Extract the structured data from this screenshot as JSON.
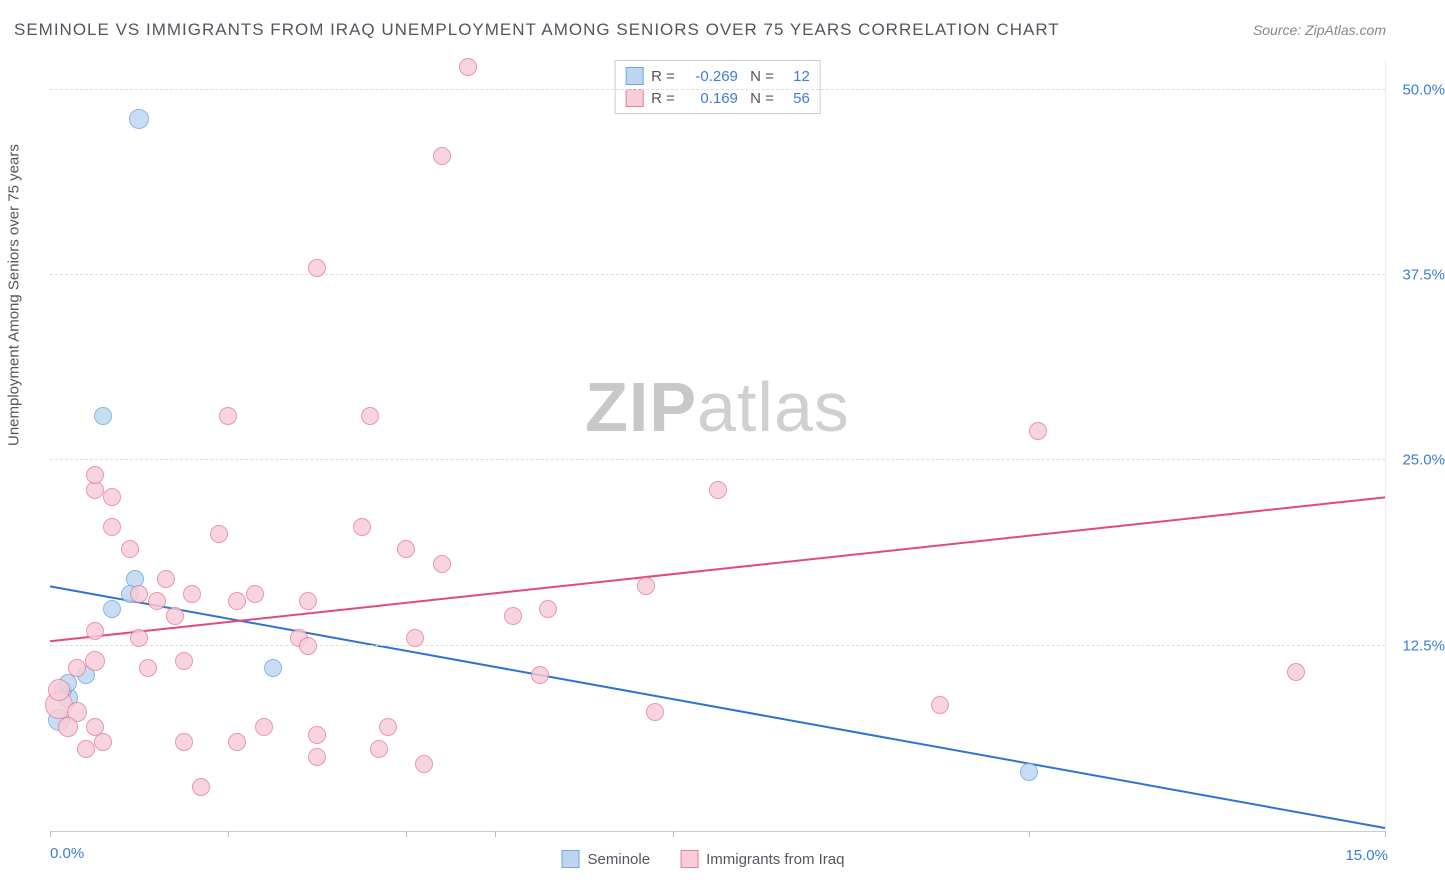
{
  "title": "SEMINOLE VS IMMIGRANTS FROM IRAQ UNEMPLOYMENT AMONG SENIORS OVER 75 YEARS CORRELATION CHART",
  "source_label": "Source: ",
  "source_name": "ZipAtlas.com",
  "ylabel": "Unemployment Among Seniors over 75 years",
  "watermark_a": "ZIP",
  "watermark_b": "atlas",
  "chart": {
    "type": "scatter",
    "xlim": [
      0,
      15
    ],
    "ylim": [
      0,
      52
    ],
    "xtick_positions": [
      0,
      2,
      4,
      5,
      7,
      11,
      15
    ],
    "ytick_values": [
      12.5,
      25.0,
      37.5,
      50.0
    ],
    "ytick_labels": [
      "12.5%",
      "25.0%",
      "37.5%",
      "50.0%"
    ],
    "x_start_label": "0.0%",
    "x_end_label": "15.0%",
    "grid_color": "#e5e5e5",
    "background_color": "#ffffff",
    "series": [
      {
        "name": "Seminole",
        "color_fill": "#bcd6f2",
        "color_stroke": "#6fa7e0",
        "R": "-0.269",
        "N": "12",
        "trend": {
          "x1": 0,
          "y1": 16.5,
          "x2": 15,
          "y2": 0.2,
          "stroke": "#2f72d2",
          "width": 2
        },
        "points": [
          {
            "x": 0.1,
            "y": 7.5,
            "r": 11
          },
          {
            "x": 0.2,
            "y": 9.0,
            "r": 10
          },
          {
            "x": 0.15,
            "y": 9.5,
            "r": 9
          },
          {
            "x": 0.2,
            "y": 10.0,
            "r": 9
          },
          {
            "x": 0.4,
            "y": 10.5,
            "r": 9
          },
          {
            "x": 1.0,
            "y": 48.0,
            "r": 10
          },
          {
            "x": 0.6,
            "y": 28.0,
            "r": 9
          },
          {
            "x": 0.95,
            "y": 17.0,
            "r": 9
          },
          {
            "x": 0.9,
            "y": 16.0,
            "r": 9
          },
          {
            "x": 0.7,
            "y": 15.0,
            "r": 9
          },
          {
            "x": 2.5,
            "y": 11.0,
            "r": 9
          },
          {
            "x": 11.0,
            "y": 4.0,
            "r": 9
          }
        ]
      },
      {
        "name": "Immigrants from Iraq",
        "color_fill": "#f7cdd7",
        "color_stroke": "#e77ea0",
        "R": "0.169",
        "N": "56",
        "trend": {
          "x1": 0,
          "y1": 12.8,
          "x2": 15,
          "y2": 22.5,
          "stroke": "#e24a77",
          "width": 2
        },
        "points": [
          {
            "x": 0.1,
            "y": 8.5,
            "r": 14
          },
          {
            "x": 0.1,
            "y": 9.5,
            "r": 11
          },
          {
            "x": 0.3,
            "y": 8.0,
            "r": 10
          },
          {
            "x": 0.2,
            "y": 7.0,
            "r": 10
          },
          {
            "x": 0.5,
            "y": 11.5,
            "r": 10
          },
          {
            "x": 0.3,
            "y": 11.0,
            "r": 9
          },
          {
            "x": 0.5,
            "y": 7.0,
            "r": 9
          },
          {
            "x": 0.4,
            "y": 5.5,
            "r": 9
          },
          {
            "x": 0.6,
            "y": 6.0,
            "r": 9
          },
          {
            "x": 0.5,
            "y": 13.5,
            "r": 9
          },
          {
            "x": 0.7,
            "y": 22.5,
            "r": 9
          },
          {
            "x": 0.7,
            "y": 20.5,
            "r": 9
          },
          {
            "x": 0.5,
            "y": 23.0,
            "r": 9
          },
          {
            "x": 0.5,
            "y": 24.0,
            "r": 9
          },
          {
            "x": 0.9,
            "y": 19.0,
            "r": 9
          },
          {
            "x": 1.0,
            "y": 16.0,
            "r": 9
          },
          {
            "x": 1.0,
            "y": 13.0,
            "r": 9
          },
          {
            "x": 1.1,
            "y": 11.0,
            "r": 9
          },
          {
            "x": 1.2,
            "y": 15.5,
            "r": 9
          },
          {
            "x": 1.3,
            "y": 17.0,
            "r": 9
          },
          {
            "x": 1.4,
            "y": 14.5,
            "r": 9
          },
          {
            "x": 1.5,
            "y": 11.5,
            "r": 9
          },
          {
            "x": 1.5,
            "y": 6.0,
            "r": 9
          },
          {
            "x": 1.6,
            "y": 16.0,
            "r": 9
          },
          {
            "x": 1.7,
            "y": 3.0,
            "r": 9
          },
          {
            "x": 1.9,
            "y": 20.0,
            "r": 9
          },
          {
            "x": 2.0,
            "y": 28.0,
            "r": 9
          },
          {
            "x": 2.1,
            "y": 15.5,
            "r": 9
          },
          {
            "x": 2.3,
            "y": 16.0,
            "r": 9
          },
          {
            "x": 2.1,
            "y": 6.0,
            "r": 9
          },
          {
            "x": 2.4,
            "y": 7.0,
            "r": 9
          },
          {
            "x": 2.8,
            "y": 13.0,
            "r": 9
          },
          {
            "x": 2.9,
            "y": 12.5,
            "r": 9
          },
          {
            "x": 2.9,
            "y": 15.5,
            "r": 9
          },
          {
            "x": 3.0,
            "y": 5.0,
            "r": 9
          },
          {
            "x": 3.0,
            "y": 6.5,
            "r": 9
          },
          {
            "x": 3.0,
            "y": 38.0,
            "r": 9
          },
          {
            "x": 3.5,
            "y": 20.5,
            "r": 9
          },
          {
            "x": 3.6,
            "y": 28.0,
            "r": 9
          },
          {
            "x": 3.7,
            "y": 5.5,
            "r": 9
          },
          {
            "x": 3.8,
            "y": 7.0,
            "r": 9
          },
          {
            "x": 4.0,
            "y": 19.0,
            "r": 9
          },
          {
            "x": 4.1,
            "y": 13.0,
            "r": 9
          },
          {
            "x": 4.2,
            "y": 4.5,
            "r": 9
          },
          {
            "x": 4.4,
            "y": 18.0,
            "r": 9
          },
          {
            "x": 4.4,
            "y": 45.5,
            "r": 9
          },
          {
            "x": 4.7,
            "y": 51.5,
            "r": 9
          },
          {
            "x": 5.2,
            "y": 14.5,
            "r": 9
          },
          {
            "x": 5.6,
            "y": 15.0,
            "r": 9
          },
          {
            "x": 5.5,
            "y": 10.5,
            "r": 9
          },
          {
            "x": 6.7,
            "y": 16.5,
            "r": 9
          },
          {
            "x": 6.8,
            "y": 8.0,
            "r": 9
          },
          {
            "x": 7.5,
            "y": 23.0,
            "r": 9
          },
          {
            "x": 10.0,
            "y": 8.5,
            "r": 9
          },
          {
            "x": 11.1,
            "y": 27.0,
            "r": 9
          },
          {
            "x": 14.0,
            "y": 10.7,
            "r": 9
          }
        ]
      }
    ]
  },
  "legend": {
    "series1_label": "Seminole",
    "series2_label": "Immigrants from Iraq"
  }
}
